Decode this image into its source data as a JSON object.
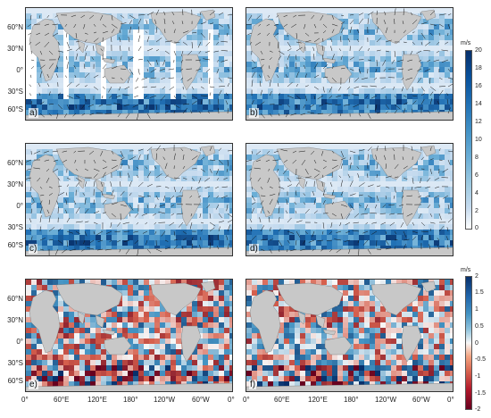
{
  "panels": [
    {
      "id": "a",
      "label": "a)"
    },
    {
      "id": "b",
      "label": "b)"
    },
    {
      "id": "c",
      "label": "c)"
    },
    {
      "id": "d",
      "label": "d)"
    },
    {
      "id": "e",
      "label": "e)"
    },
    {
      "id": "f",
      "label": "f)"
    }
  ],
  "lat_labels": [
    "60°N",
    "30°N",
    "0°",
    "30°S",
    "60°S"
  ],
  "lon_labels_left": [
    "0°",
    "60°E",
    "120°E",
    "180°",
    "120°W",
    "60°W",
    "0°"
  ],
  "lon_labels_right": [
    "0°",
    "60°E",
    "120°E",
    "180°",
    "120°W",
    "60°W",
    "0°"
  ],
  "colorbar_speed": {
    "unit": "m/s",
    "ticks": [
      "20",
      "18",
      "16",
      "14",
      "12",
      "10",
      "8",
      "6",
      "4",
      "2",
      "0"
    ],
    "range": [
      0,
      20
    ]
  },
  "colorbar_diff": {
    "unit": "m/s",
    "ticks": [
      "2",
      "1.5",
      "1",
      "0.5",
      "0",
      "-0.5",
      "-1",
      "-1.5",
      "-2"
    ],
    "range": [
      -2,
      2
    ]
  },
  "colors": {
    "land": "#c8c8c8",
    "ocean_low": "#ffffff",
    "ocean_high": "#08306b",
    "diff_pos": "#08306b",
    "diff_neg": "#67001f"
  }
}
